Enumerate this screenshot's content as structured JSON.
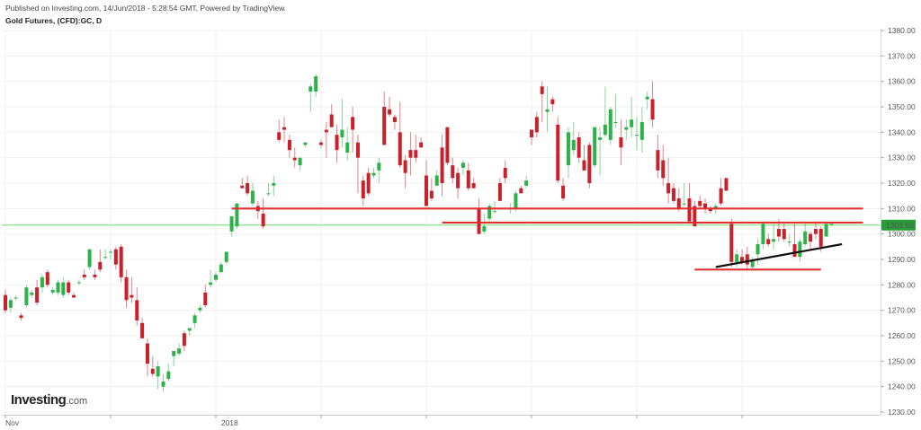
{
  "header": {
    "published": "Published on Investing.com, 14/Jun/2018 - 5:28:54 GMT, Powered by TradingView.",
    "title": "Gold Futures, (CFD):GC, D"
  },
  "logo": {
    "name": "Investing",
    "domain": ".com"
  },
  "colors": {
    "up": "#2db24a",
    "down": "#c9202b",
    "trendline": "#e03030",
    "channel": "#111111",
    "price_line": "#6fdc6f",
    "price_badge": "#2a9d3a"
  },
  "chart_data": {
    "type": "candlestick",
    "title": "Gold Futures, (CFD):GC, D",
    "ylim": [
      1230,
      1380
    ],
    "y_ticks": [
      1230,
      1240,
      1250,
      1260,
      1270,
      1280,
      1290,
      1300,
      1310,
      1320,
      1330,
      1340,
      1350,
      1360,
      1370,
      1380
    ],
    "y_tick_labels": [
      "1230.00",
      "1240.00",
      "1250.00",
      "1260.00",
      "1270.00",
      "1280.00",
      "1290.00",
      "1300.00",
      "1310.00",
      "1320.00",
      "1330.00",
      "1340.00",
      "1350.00",
      "1360.00",
      "1370.00",
      "1380.00"
    ],
    "x_labels": [
      {
        "label": "Nov",
        "bar": 0
      },
      {
        "label": "2018",
        "bar": 41
      }
    ],
    "last_price": 1303.5,
    "last_price_label": "1303.50",
    "candles": [
      [
        1276,
        1278,
        1269,
        1270
      ],
      [
        1271,
        1275,
        1269,
        1274
      ],
      [
        1275,
        1276,
        1274,
        1275
      ],
      [
        1268,
        1269,
        1266,
        1267
      ],
      [
        1272,
        1280,
        1271,
        1279
      ],
      [
        1276,
        1278,
        1275,
        1277
      ],
      [
        1279,
        1282,
        1272,
        1273
      ],
      [
        1279,
        1284,
        1277,
        1283
      ],
      [
        1285,
        1286,
        1279,
        1280
      ],
      [
        1277,
        1279,
        1276,
        1278
      ],
      [
        1277,
        1282,
        1276,
        1281
      ],
      [
        1276,
        1283,
        1275,
        1281
      ],
      [
        1281,
        1282,
        1276,
        1277
      ],
      [
        1276,
        1277,
        1275,
        1275
      ],
      [
        1281,
        1282,
        1280,
        1281
      ],
      [
        1284,
        1286,
        1282,
        1283
      ],
      [
        1287,
        1294,
        1286,
        1294
      ],
      [
        1284,
        1286,
        1282,
        1283
      ],
      [
        1289,
        1294,
        1285,
        1286
      ],
      [
        1291,
        1294,
        1290,
        1291
      ],
      [
        1293,
        1294,
        1290,
        1293
      ],
      [
        1294,
        1295,
        1286,
        1288
      ],
      [
        1295,
        1296,
        1281,
        1283
      ],
      [
        1283,
        1286,
        1271,
        1274
      ],
      [
        1276,
        1283,
        1273,
        1275
      ],
      [
        1274,
        1279,
        1264,
        1266
      ],
      [
        1265,
        1267,
        1259,
        1259
      ],
      [
        1257,
        1259,
        1244,
        1249
      ],
      [
        1247,
        1252,
        1244,
        1245
      ],
      [
        1244,
        1250,
        1239,
        1248
      ],
      [
        1240,
        1245,
        1238,
        1242
      ],
      [
        1243,
        1249,
        1242,
        1246
      ],
      [
        1252,
        1254,
        1248,
        1254
      ],
      [
        1253,
        1257,
        1252,
        1255
      ],
      [
        1261,
        1262,
        1254,
        1256
      ],
      [
        1262,
        1263,
        1260,
        1263
      ],
      [
        1265,
        1269,
        1263,
        1268
      ],
      [
        1270,
        1272,
        1269,
        1271
      ],
      [
        1277,
        1280,
        1271,
        1272
      ],
      [
        1280,
        1286,
        1279,
        1281
      ],
      [
        1282,
        1285,
        1281,
        1284
      ],
      [
        1285,
        1289,
        1285,
        1288
      ],
      [
        1289,
        1293,
        1288,
        1293
      ],
      [
        1301,
        1307,
        1299,
        1307
      ],
      [
        1303,
        1312,
        1302,
        1312
      ],
      [
        1319,
        1322,
        1318,
        1318
      ],
      [
        1320,
        1323,
        1315,
        1316
      ],
      [
        1312,
        1320,
        1311,
        1317
      ],
      [
        1311,
        1313,
        1306,
        1309
      ],
      [
        1308,
        1314,
        1302,
        1303
      ],
      [
        1316,
        1320,
        1315,
        1316
      ],
      [
        1319,
        1323,
        1315,
        1320
      ],
      [
        1340,
        1345,
        1336,
        1337
      ],
      [
        1342,
        1346,
        1336,
        1341
      ],
      [
        1337,
        1339,
        1330,
        1333
      ],
      [
        1330,
        1334,
        1326,
        1329
      ],
      [
        1327,
        1330,
        1325,
        1330
      ],
      [
        1335,
        1336,
        1334,
        1336
      ],
      [
        1356,
        1359,
        1348,
        1358
      ],
      [
        1356,
        1363,
        1354,
        1362
      ],
      [
        1336,
        1337,
        1334,
        1335
      ],
      [
        1341,
        1344,
        1330,
        1340
      ],
      [
        1347,
        1351,
        1342,
        1342
      ],
      [
        1339,
        1343,
        1328,
        1333
      ],
      [
        1338,
        1353,
        1334,
        1341
      ],
      [
        1332,
        1342,
        1329,
        1336
      ],
      [
        1346,
        1350,
        1332,
        1341
      ],
      [
        1336,
        1339,
        1316,
        1330
      ],
      [
        1321,
        1323,
        1311,
        1314
      ],
      [
        1324,
        1326,
        1315,
        1316
      ],
      [
        1323,
        1326,
        1322,
        1324
      ],
      [
        1325,
        1330,
        1320,
        1328
      ],
      [
        1350,
        1356,
        1335,
        1335
      ],
      [
        1349,
        1354,
        1346,
        1347
      ],
      [
        1346,
        1347,
        1341,
        1344
      ],
      [
        1340,
        1352,
        1326,
        1327
      ],
      [
        1329,
        1331,
        1318,
        1324
      ],
      [
        1333,
        1340,
        1323,
        1330
      ],
      [
        1333,
        1339,
        1328,
        1330
      ],
      [
        1336,
        1338,
        1334,
        1334
      ],
      [
        1323,
        1329,
        1311,
        1311
      ],
      [
        1317,
        1322,
        1313,
        1314
      ],
      [
        1319,
        1325,
        1319,
        1323
      ],
      [
        1334,
        1339,
        1315,
        1320
      ],
      [
        1342,
        1342,
        1327,
        1328
      ],
      [
        1327,
        1330,
        1320,
        1322
      ],
      [
        1324,
        1326,
        1314,
        1318
      ],
      [
        1326,
        1329,
        1323,
        1328
      ],
      [
        1325,
        1328,
        1317,
        1318
      ],
      [
        1320,
        1322,
        1318,
        1318
      ],
      [
        1310,
        1314,
        1300,
        1300
      ],
      [
        1301,
        1308,
        1300,
        1303
      ],
      [
        1306,
        1312,
        1305,
        1311
      ],
      [
        1309,
        1313,
        1308,
        1309
      ],
      [
        1320,
        1322,
        1313,
        1313
      ],
      [
        1326,
        1329,
        1320,
        1322
      ],
      [
        1310,
        1312,
        1308,
        1310
      ],
      [
        1310,
        1317,
        1309,
        1316
      ],
      [
        1318,
        1319,
        1316,
        1316
      ],
      [
        1319,
        1323,
        1318,
        1321
      ],
      [
        1341,
        1341,
        1335,
        1338
      ],
      [
        1346,
        1348,
        1338,
        1340
      ],
      [
        1358,
        1360,
        1344,
        1355
      ],
      [
        1348,
        1358,
        1340,
        1349
      ],
      [
        1353,
        1354,
        1348,
        1351
      ],
      [
        1343,
        1346,
        1320,
        1321
      ],
      [
        1319,
        1322,
        1313,
        1314
      ],
      [
        1327,
        1342,
        1322,
        1340
      ],
      [
        1333,
        1344,
        1331,
        1337
      ],
      [
        1338,
        1340,
        1328,
        1330
      ],
      [
        1329,
        1335,
        1325,
        1325
      ],
      [
        1335,
        1336,
        1318,
        1320
      ],
      [
        1327,
        1342,
        1326,
        1342
      ],
      [
        1337,
        1342,
        1323,
        1338
      ],
      [
        1339,
        1358,
        1338,
        1343
      ],
      [
        1337,
        1350,
        1335,
        1349
      ],
      [
        1344,
        1355,
        1342,
        1344
      ],
      [
        1338,
        1345,
        1327,
        1334
      ],
      [
        1341,
        1345,
        1337,
        1342
      ],
      [
        1342,
        1354,
        1338,
        1345
      ],
      [
        1339,
        1346,
        1333,
        1339
      ],
      [
        1337,
        1350,
        1332,
        1344
      ],
      [
        1353,
        1356,
        1349,
        1354
      ],
      [
        1353,
        1360,
        1342,
        1345
      ],
      [
        1333,
        1339,
        1322,
        1325
      ],
      [
        1329,
        1335,
        1319,
        1322
      ],
      [
        1320,
        1330,
        1312,
        1316
      ],
      [
        1318,
        1320,
        1312,
        1313
      ],
      [
        1314,
        1318,
        1309,
        1310
      ],
      [
        1312,
        1320,
        1311,
        1312
      ],
      [
        1314,
        1320,
        1304,
        1305
      ],
      [
        1311,
        1313,
        1303,
        1303
      ],
      [
        1313,
        1315,
        1310,
        1311
      ],
      [
        1312,
        1314,
        1308,
        1310
      ],
      [
        1310,
        1311,
        1308,
        1309
      ],
      [
        1310,
        1312,
        1308,
        1311
      ],
      [
        1318,
        1322,
        1311,
        1312
      ],
      [
        1322,
        1322,
        1317,
        1317
      ],
      [
        1304,
        1306,
        1287,
        1289
      ],
      [
        1289,
        1294,
        1287,
        1292
      ],
      [
        1291,
        1294,
        1288,
        1289
      ],
      [
        1292,
        1295,
        1286,
        1288
      ],
      [
        1287,
        1291,
        1286,
        1290
      ],
      [
        1292,
        1298,
        1288,
        1296
      ],
      [
        1296,
        1305,
        1294,
        1304
      ],
      [
        1298,
        1300,
        1295,
        1296
      ],
      [
        1297,
        1304,
        1294,
        1298
      ],
      [
        1302,
        1306,
        1297,
        1299
      ],
      [
        1302,
        1304,
        1297,
        1298
      ],
      [
        1297,
        1300,
        1295,
        1297
      ],
      [
        1296,
        1304,
        1291,
        1291
      ],
      [
        1291,
        1298,
        1289,
        1297
      ],
      [
        1296,
        1305,
        1295,
        1301
      ],
      [
        1300,
        1301,
        1294,
        1297
      ],
      [
        1302,
        1305,
        1298,
        1300
      ],
      [
        1302,
        1303,
        1293,
        1295
      ],
      [
        1299,
        1305,
        1299,
        1304
      ],
      [
        1304,
        1304,
        1303,
        1304
      ]
    ],
    "annotations": [
      {
        "type": "hline",
        "from_bar": 43,
        "to_bar": 163,
        "y": 1310
      },
      {
        "type": "hline",
        "from_bar": 83,
        "to_bar": 163,
        "y": 1304.5
      },
      {
        "type": "hline",
        "from_bar": 131,
        "to_bar": 155,
        "y": 1286
      },
      {
        "type": "trendline",
        "from_bar": 135,
        "y1": 1287,
        "to_bar": 159,
        "y2": 1296
      }
    ]
  }
}
